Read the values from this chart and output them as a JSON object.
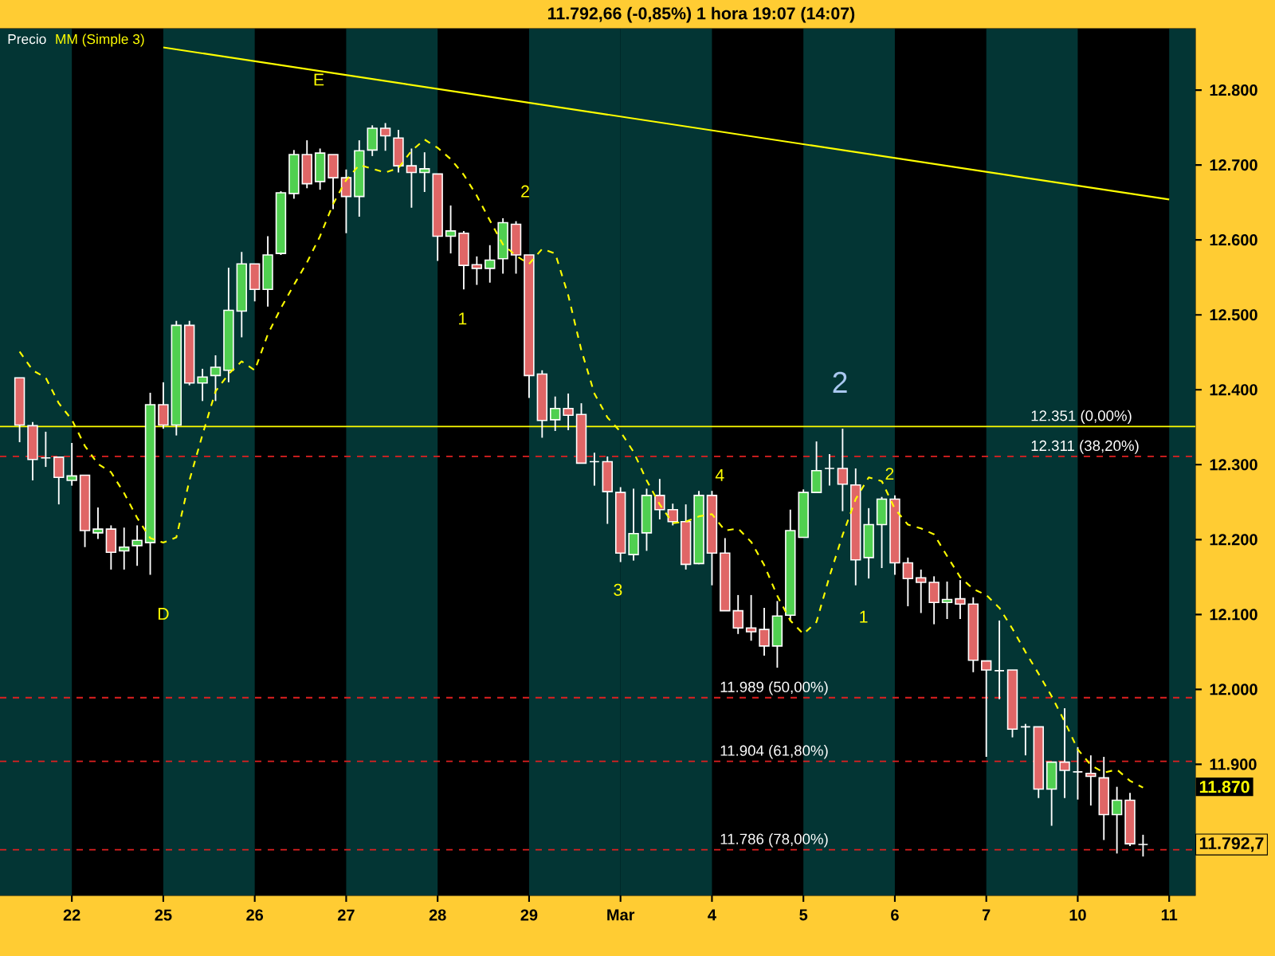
{
  "chart_data": {
    "type": "candlestick",
    "title": "11.792,66 (-0,85%)  1 hora  19:07 (14:07)",
    "categories": [
      null,
      null,
      null,
      null,
      "22",
      null,
      null,
      null,
      null,
      null,
      null,
      "25",
      null,
      null,
      null,
      null,
      null,
      null,
      "26",
      null,
      null,
      null,
      null,
      null,
      null,
      "27",
      null,
      null,
      null,
      null,
      null,
      null,
      "28",
      null,
      null,
      null,
      null,
      null,
      null,
      "29",
      null,
      null,
      null,
      null,
      null,
      null,
      "Mar",
      null,
      null,
      null,
      null,
      null,
      null,
      "4",
      null,
      null,
      null,
      null,
      null,
      null,
      "5",
      null,
      null,
      null,
      null,
      null,
      null,
      "6",
      null,
      null,
      null,
      null,
      null,
      null,
      "7",
      null,
      null,
      null,
      null,
      null,
      null,
      "10",
      null,
      null,
      null,
      null,
      null,
      null,
      "11"
    ],
    "ylim": [
      11725,
      12882
    ],
    "yticks": [
      {
        "value": 11900,
        "label": "11.900"
      },
      {
        "value": 12000,
        "label": "12.000"
      },
      {
        "value": 12100,
        "label": "12.100"
      },
      {
        "value": 12200,
        "label": "12.200"
      },
      {
        "value": 12300,
        "label": "12.300"
      },
      {
        "value": 12400,
        "label": "12.400"
      },
      {
        "value": 12500,
        "label": "12.500"
      },
      {
        "value": 12600,
        "label": "12.600"
      },
      {
        "value": 12700,
        "label": "12.700"
      },
      {
        "value": 12800,
        "label": "12.800"
      }
    ],
    "legend": "top left",
    "ref_lines": [
      {
        "axis": "y",
        "value": 12311,
        "label": "12.311 (38,20%)",
        "color": "#e02020",
        "line_style": "dashed"
      },
      {
        "axis": "y",
        "value": 12351,
        "label": "12.351 (0,00%)",
        "color": "#ffff00",
        "line_style": "solid"
      },
      {
        "axis": "y",
        "value": 11989,
        "label": "11.989 (50,00%)",
        "color": "#e02020",
        "line_style": "dashed"
      },
      {
        "axis": "y",
        "value": 11904,
        "label": "11.904 (61,80%)",
        "color": "#e02020",
        "line_style": "dashed"
      },
      {
        "axis": "y",
        "value": 11786,
        "label": "11.786 (78,00%)",
        "color": "#e02020",
        "line_style": "dashed"
      }
    ],
    "annotations": [
      "E",
      "D",
      "1",
      "2",
      "3",
      "4",
      "2",
      "2",
      "1",
      "11.870",
      "11.792,7"
    ],
    "series": [
      {
        "name": "Precio",
        "color": "#ffffff",
        "ohlc": [
          [
            12416,
            12416,
            12330,
            12353
          ],
          [
            12352,
            12357,
            12279,
            12307
          ],
          [
            12309,
            12344,
            12297,
            12309
          ],
          [
            12310,
            12310,
            12247,
            12283
          ],
          [
            12279,
            12329,
            12272,
            12285
          ],
          [
            12286,
            12286,
            12190,
            12212
          ],
          [
            12209,
            12243,
            12201,
            12214
          ],
          [
            12214,
            12219,
            12160,
            12183
          ],
          [
            12185,
            12216,
            12160,
            12190
          ],
          [
            12192,
            12219,
            12165,
            12199
          ],
          [
            12196,
            12396,
            12153,
            12380
          ],
          [
            12380,
            12410,
            12348,
            12353
          ],
          [
            12353,
            12492,
            12339,
            12486
          ],
          [
            12486,
            12492,
            12406,
            12409
          ],
          [
            12409,
            12428,
            12385,
            12417
          ],
          [
            12419,
            12446,
            12385,
            12430
          ],
          [
            12426,
            12563,
            12410,
            12506
          ],
          [
            12505,
            12584,
            12470,
            12568
          ],
          [
            12568,
            12568,
            12518,
            12534
          ],
          [
            12534,
            12605,
            12511,
            12580
          ],
          [
            12582,
            12665,
            12580,
            12663
          ],
          [
            12662,
            12720,
            12655,
            12714
          ],
          [
            12714,
            12733,
            12669,
            12675
          ],
          [
            12678,
            12722,
            12667,
            12716
          ],
          [
            12714,
            12714,
            12641,
            12683
          ],
          [
            12683,
            12694,
            12609,
            12658
          ],
          [
            12658,
            12733,
            12631,
            12719
          ],
          [
            12720,
            12753,
            12712,
            12749
          ],
          [
            12749,
            12756,
            12719,
            12739
          ],
          [
            12736,
            12747,
            12690,
            12699
          ],
          [
            12699,
            12722,
            12643,
            12690
          ],
          [
            12690,
            12717,
            12664,
            12695
          ],
          [
            12688,
            12688,
            12572,
            12605
          ],
          [
            12605,
            12646,
            12582,
            12612
          ],
          [
            12609,
            12612,
            12534,
            12566
          ],
          [
            12567,
            12578,
            12540,
            12562
          ],
          [
            12562,
            12593,
            12543,
            12573
          ],
          [
            12575,
            12629,
            12555,
            12623
          ],
          [
            12621,
            12625,
            12555,
            12580
          ],
          [
            12580,
            12580,
            12389,
            12419
          ],
          [
            12421,
            12426,
            12336,
            12359
          ],
          [
            12360,
            12391,
            12345,
            12375
          ],
          [
            12375,
            12395,
            12346,
            12366
          ],
          [
            12367,
            12382,
            12302,
            12302
          ],
          [
            12304,
            12316,
            12272,
            12304
          ],
          [
            12304,
            12311,
            12221,
            12264
          ],
          [
            12263,
            12270,
            12170,
            12182
          ],
          [
            12180,
            12268,
            12172,
            12208
          ],
          [
            12209,
            12268,
            12185,
            12259
          ],
          [
            12259,
            12281,
            12227,
            12240
          ],
          [
            12240,
            12248,
            12219,
            12224
          ],
          [
            12224,
            12247,
            12160,
            12167
          ],
          [
            12168,
            12265,
            12167,
            12259
          ],
          [
            12259,
            12265,
            12139,
            12182
          ],
          [
            12182,
            12202,
            12105,
            12105
          ],
          [
            12105,
            12126,
            12074,
            12082
          ],
          [
            12082,
            12126,
            12065,
            12077
          ],
          [
            12080,
            12109,
            12045,
            12058
          ],
          [
            12058,
            12118,
            12029,
            12098
          ],
          [
            12099,
            12240,
            12091,
            12212
          ],
          [
            12203,
            12267,
            12203,
            12263
          ],
          [
            12263,
            12331,
            12263,
            12292
          ],
          [
            12295,
            12314,
            12272,
            12295
          ],
          [
            12295,
            12348,
            12238,
            12274
          ],
          [
            12273,
            12295,
            12139,
            12173
          ],
          [
            12176,
            12242,
            12148,
            12220
          ],
          [
            12220,
            12257,
            12162,
            12254
          ],
          [
            12254,
            12259,
            12153,
            12169
          ],
          [
            12169,
            12176,
            12111,
            12148
          ],
          [
            12149,
            12160,
            12102,
            12143
          ],
          [
            12143,
            12151,
            12087,
            12116
          ],
          [
            12116,
            12144,
            12094,
            12120
          ],
          [
            12121,
            12146,
            12094,
            12114
          ],
          [
            12114,
            12123,
            12023,
            12039
          ],
          [
            12038,
            12038,
            11910,
            12026
          ],
          [
            12025,
            12092,
            11987,
            12025
          ],
          [
            12026,
            12026,
            11936,
            11947
          ],
          [
            11950,
            11954,
            11912,
            11950
          ],
          [
            11950,
            11950,
            11855,
            11867
          ],
          [
            11867,
            11903,
            11818,
            11903
          ],
          [
            11903,
            11975,
            11855,
            11892
          ],
          [
            11890,
            11923,
            11853,
            11890
          ],
          [
            11888,
            11912,
            11845,
            11884
          ],
          [
            11882,
            11910,
            11799,
            11833
          ],
          [
            11833,
            11870,
            11781,
            11852
          ],
          [
            11852,
            11862,
            11791,
            11794
          ],
          [
            11793,
            11806,
            11777,
            11793
          ],
          null,
          null
        ],
        "colors": [
          "#e06666",
          "#e06666",
          "#ffffff",
          "#e06666",
          "#50d050",
          "#e06666",
          "#50d050",
          "#e06666",
          "#50d050",
          "#50d050",
          "#50d050",
          "#e06666",
          "#50d050",
          "#e06666",
          "#50d050",
          "#50d050",
          "#50d050",
          "#50d050",
          "#e06666",
          "#50d050",
          "#50d050",
          "#50d050",
          "#e06666",
          "#50d050",
          "#e06666",
          "#e06666",
          "#50d050",
          "#50d050",
          "#e06666",
          "#e06666",
          "#e06666",
          "#50d050",
          "#e06666",
          "#50d050",
          "#e06666",
          "#e06666",
          "#50d050",
          "#50d050",
          "#e06666",
          "#e06666",
          "#e06666",
          "#50d050",
          "#e06666",
          "#e06666",
          "#ffffff",
          "#e06666",
          "#e06666",
          "#50d050",
          "#50d050",
          "#e06666",
          "#e06666",
          "#e06666",
          "#50d050",
          "#e06666",
          "#e06666",
          "#e06666",
          "#e06666",
          "#e06666",
          "#50d050",
          "#50d050",
          "#50d050",
          "#50d050",
          "#ffffff",
          "#e06666",
          "#e06666",
          "#50d050",
          "#50d050",
          "#e06666",
          "#e06666",
          "#e06666",
          "#e06666",
          "#50d050",
          "#e06666",
          "#e06666",
          "#e06666",
          "#ffffff",
          "#e06666",
          "#ffffff",
          "#e06666",
          "#50d050",
          "#e06666",
          "#ffffff",
          "#e06666",
          "#e06666",
          "#50d050",
          "#e06666",
          "#ffffff",
          null,
          null
        ]
      },
      {
        "name": "MM (Simple 3)",
        "type": "line",
        "color": "#ffff00",
        "line_style": "dashed",
        "values": [
          12451,
          12426,
          12416,
          12382,
          12360,
          12325,
          12301,
          12290,
          12262,
          12229,
          12202,
          12196,
          12203,
          12279,
          12340,
          12398,
          12421,
          12438,
          12426,
          12474,
          12509,
          12540,
          12570,
          12605,
          12648,
          12680,
          12700,
          12695,
          12690,
          12696,
          12719,
          12734,
          12723,
          12708,
          12687,
          12659,
          12626,
          12594,
          12579,
          12568,
          12588,
          12582,
          12526,
          12453,
          12395,
          12363,
          12344,
          12317,
          12279,
          12247,
          12222,
          12224,
          12231,
          12234,
          12212,
          12215,
          12197,
          12166,
          12125,
          12092,
          12074,
          12090,
          12151,
          12206,
          12254,
          12283,
          12278,
          12241,
          12220,
          12215,
          12207,
          12178,
          12150,
          12134,
          12126,
          12109,
          12081,
          12050,
          12021,
          11991,
          11957,
          11920,
          11899,
          11889,
          11893,
          11878,
          11869,
          null,
          null
        ]
      },
      {
        "type": "line",
        "color": "#ffff00",
        "line_style": "solid",
        "values": [
          null,
          null,
          null,
          null,
          null,
          null,
          null,
          null,
          null,
          null,
          null,
          12857,
          null,
          null,
          null,
          null,
          null,
          null,
          null,
          null,
          null,
          null,
          null,
          null,
          null,
          null,
          null,
          null,
          null,
          null,
          null,
          null,
          null,
          null,
          null,
          null,
          null,
          null,
          null,
          null,
          null,
          null,
          null,
          null,
          null,
          null,
          null,
          null,
          null,
          null,
          null,
          null,
          null,
          null,
          null,
          null,
          null,
          null,
          null,
          null,
          null,
          null,
          null,
          null,
          null,
          null,
          null,
          null,
          null,
          null,
          null,
          null,
          null,
          null,
          null,
          null,
          null,
          null,
          null,
          null,
          null,
          null,
          null,
          null,
          null,
          null,
          null,
          null,
          12654
        ]
      }
    ]
  }
}
